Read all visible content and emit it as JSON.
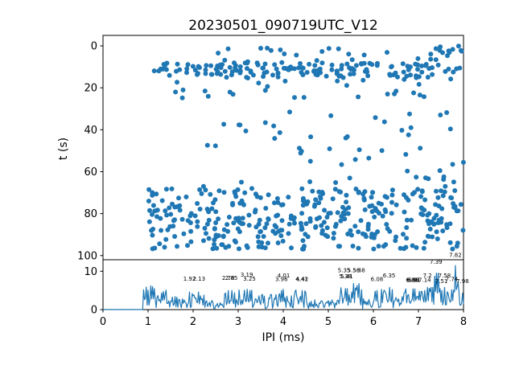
{
  "figure": {
    "title": "20230501_090719UTC_V12",
    "background": "#ffffff",
    "accent_color": "#1f77b4",
    "spine_color": "#000000"
  },
  "chart_data": [
    {
      "type": "scatter",
      "title": "",
      "xlabel": "",
      "ylabel": "t (s)",
      "xlim": [
        0,
        8
      ],
      "ylim": [
        -5,
        102
      ],
      "y_inverted": true,
      "yticks": [
        0,
        20,
        40,
        60,
        80,
        100
      ],
      "grid": false,
      "legend": "none",
      "marker_color": "#1f77b4",
      "marker_radius": 3,
      "seed": 1337,
      "clusters": [
        {
          "name": "upper-band-core",
          "n": 160,
          "x": [
            1.0,
            8.0
          ],
          "t": [
            8,
            15
          ]
        },
        {
          "name": "upper-band-above",
          "n": 20,
          "x": [
            1.8,
            7.2
          ],
          "t": [
            1,
            8
          ]
        },
        {
          "name": "top-right-spray",
          "n": 14,
          "x": [
            7.2,
            8.0
          ],
          "t": [
            0,
            7
          ]
        },
        {
          "name": "upper-band-below",
          "n": 30,
          "x": [
            1.5,
            8.0
          ],
          "t": [
            15,
            25
          ]
        },
        {
          "name": "mid-sparse-left",
          "n": 10,
          "x": [
            1.5,
            4.0
          ],
          "t": [
            36,
            48
          ]
        },
        {
          "name": "mid-sparse-right",
          "n": 30,
          "x": [
            4.0,
            8.0
          ],
          "t": [
            30,
            62
          ]
        },
        {
          "name": "pre-band-scatter",
          "n": 12,
          "x": [
            2.0,
            8.0
          ],
          "t": [
            62,
            68
          ]
        },
        {
          "name": "lower-band",
          "n": 115,
          "x": [
            1.0,
            8.0
          ],
          "t": [
            68,
            77
          ]
        },
        {
          "name": "bottom-cloud",
          "n": 265,
          "x": [
            1.0,
            8.0
          ],
          "t": [
            77,
            97
          ]
        }
      ]
    },
    {
      "type": "line",
      "title": "",
      "xlabel": "IPI (ms)",
      "ylabel": "",
      "xlim": [
        0,
        8
      ],
      "ylim": [
        0,
        13
      ],
      "yticks": [
        0,
        10
      ],
      "xticks": [
        0,
        1,
        2,
        3,
        4,
        5,
        6,
        7,
        8
      ],
      "grid": false,
      "legend": "none",
      "line_color": "#1f77b4",
      "line_width": 1.2,
      "seed": 2024,
      "sample_step": 0.02,
      "noise_segments": [
        [
          0.0,
          0.9,
          0.0,
          0.05
        ],
        [
          0.9,
          1.45,
          0.5,
          6.2
        ],
        [
          1.45,
          1.85,
          0.2,
          3.5
        ],
        [
          1.85,
          2.25,
          0.4,
          4.6
        ],
        [
          2.25,
          2.7,
          0.2,
          3.0
        ],
        [
          2.7,
          3.35,
          0.4,
          5.2
        ],
        [
          3.35,
          3.9,
          0.2,
          4.0
        ],
        [
          3.9,
          4.5,
          0.4,
          5.2
        ],
        [
          4.5,
          5.25,
          0.1,
          2.6
        ],
        [
          5.25,
          5.75,
          0.8,
          7.0
        ],
        [
          5.75,
          6.0,
          0.2,
          3.0
        ],
        [
          6.0,
          6.45,
          0.4,
          5.5
        ],
        [
          6.45,
          7.0,
          0.5,
          5.5
        ],
        [
          7.0,
          7.35,
          0.5,
          6.0
        ],
        [
          7.35,
          7.45,
          1.5,
          9.5
        ],
        [
          7.45,
          7.65,
          0.8,
          6.0
        ],
        [
          7.65,
          7.78,
          0.8,
          5.5
        ],
        [
          7.78,
          7.88,
          1.5,
          11.5
        ],
        [
          7.88,
          8.0,
          0.5,
          4.5
        ]
      ],
      "peaks": [
        [
          1.05,
          6.2
        ],
        [
          1.15,
          5.5
        ],
        [
          1.92,
          4.6
        ],
        [
          2.13,
          4.6
        ],
        [
          2.78,
          5.0
        ],
        [
          2.85,
          5.0
        ],
        [
          3.19,
          5.3
        ],
        [
          3.25,
          5.0
        ],
        [
          3.96,
          5.0
        ],
        [
          4.01,
          5.3
        ],
        [
          4.41,
          5.0
        ],
        [
          4.42,
          5.0
        ],
        [
          5.35,
          6.8
        ],
        [
          5.38,
          5.5
        ],
        [
          5.41,
          5.5
        ],
        [
          5.56,
          6.8
        ],
        [
          5.68,
          6.8
        ],
        [
          6.08,
          5.0
        ],
        [
          6.35,
          5.8
        ],
        [
          6.86,
          5.4
        ],
        [
          6.88,
          5.4
        ],
        [
          6.91,
          5.4
        ],
        [
          7.14,
          5.0
        ],
        [
          7.2,
          5.8
        ],
        [
          7.39,
          9.5
        ],
        [
          7.51,
          5.0
        ],
        [
          7.58,
          5.8
        ],
        [
          7.74,
          5.2
        ],
        [
          7.82,
          11.5
        ],
        [
          7.98,
          4.3
        ]
      ],
      "annotations": [
        {
          "label": "1.92",
          "x": 1.92,
          "y": 7.6
        },
        {
          "label": "2.13",
          "x": 2.13,
          "y": 7.6
        },
        {
          "label": "2.78",
          "x": 2.78,
          "y": 7.8
        },
        {
          "label": "2.85",
          "x": 2.85,
          "y": 7.8
        },
        {
          "label": "3.19",
          "x": 3.19,
          "y": 8.6
        },
        {
          "label": "3.25",
          "x": 3.25,
          "y": 7.6
        },
        {
          "label": "3.96",
          "x": 3.96,
          "y": 7.4
        },
        {
          "label": "4.01",
          "x": 4.01,
          "y": 8.4
        },
        {
          "label": "4.41",
          "x": 4.41,
          "y": 7.4
        },
        {
          "label": "4.42",
          "x": 4.42,
          "y": 7.4
        },
        {
          "label": "5.35",
          "x": 5.35,
          "y": 9.7
        },
        {
          "label": "5.38",
          "x": 5.38,
          "y": 8.2
        },
        {
          "label": "5.41",
          "x": 5.41,
          "y": 8.2
        },
        {
          "label": "5.56",
          "x": 5.56,
          "y": 9.7
        },
        {
          "label": "5.68",
          "x": 5.68,
          "y": 9.7
        },
        {
          "label": "6.08",
          "x": 6.08,
          "y": 7.4
        },
        {
          "label": "6.35",
          "x": 6.35,
          "y": 8.4
        },
        {
          "label": "6.86",
          "x": 6.86,
          "y": 7.2
        },
        {
          "label": "6.88",
          "x": 6.88,
          "y": 7.2
        },
        {
          "label": "6.91",
          "x": 6.91,
          "y": 7.2
        },
        {
          "label": "7.14",
          "x": 7.14,
          "y": 7.2
        },
        {
          "label": "7.2",
          "x": 7.2,
          "y": 8.4
        },
        {
          "label": "7.39",
          "x": 7.39,
          "y": 12.0
        },
        {
          "label": "7.51",
          "x": 7.51,
          "y": 6.9
        },
        {
          "label": "7.58",
          "x": 7.58,
          "y": 8.4
        },
        {
          "label": "7.74",
          "x": 7.74,
          "y": 7.4
        },
        {
          "label": "7.82",
          "x": 7.82,
          "y": 13.7
        },
        {
          "label": "7.98",
          "x": 7.98,
          "y": 6.9
        }
      ]
    }
  ]
}
